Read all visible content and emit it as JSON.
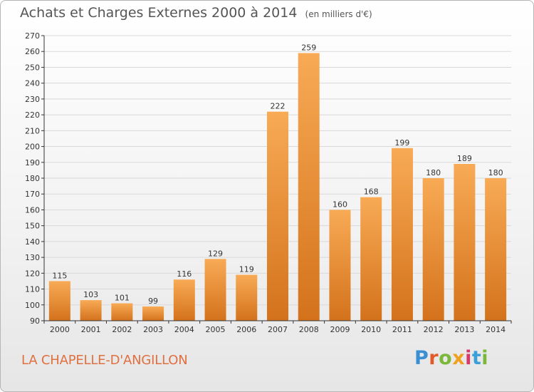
{
  "title": "Achats et Charges Externes 2000 à 2014",
  "unit": "(en milliers d'€)",
  "commune": "LA CHAPELLE-D'ANGILLON",
  "logo": {
    "letters": [
      "P",
      "r",
      "o",
      "x",
      "i",
      "t",
      "i"
    ],
    "colors": [
      "#3a8fd4",
      "#e05a2a",
      "#7ab83a",
      "#f0a020",
      "#d63a6a",
      "#3aa0d8",
      "#7ab83a"
    ]
  },
  "colors": {
    "bar_top": "#f8aa55",
    "bar_bottom": "#d4721c",
    "grid": "#d9d9d9",
    "axis": "#333333"
  },
  "chart_data": {
    "type": "bar",
    "categories": [
      "2000",
      "2001",
      "2002",
      "2003",
      "2004",
      "2005",
      "2006",
      "2007",
      "2008",
      "2009",
      "2010",
      "2011",
      "2012",
      "2013",
      "2014"
    ],
    "values": [
      115,
      103,
      101,
      99,
      116,
      129,
      119,
      222,
      259,
      160,
      168,
      199,
      180,
      189,
      180
    ],
    "ylim": [
      90,
      270
    ],
    "yticks": [
      90,
      100,
      110,
      120,
      130,
      140,
      150,
      160,
      170,
      180,
      190,
      200,
      210,
      220,
      230,
      240,
      250,
      260,
      270
    ],
    "grid": true,
    "title": "Achats et Charges Externes 2000 à 2014",
    "xlabel": "",
    "ylabel": ""
  }
}
